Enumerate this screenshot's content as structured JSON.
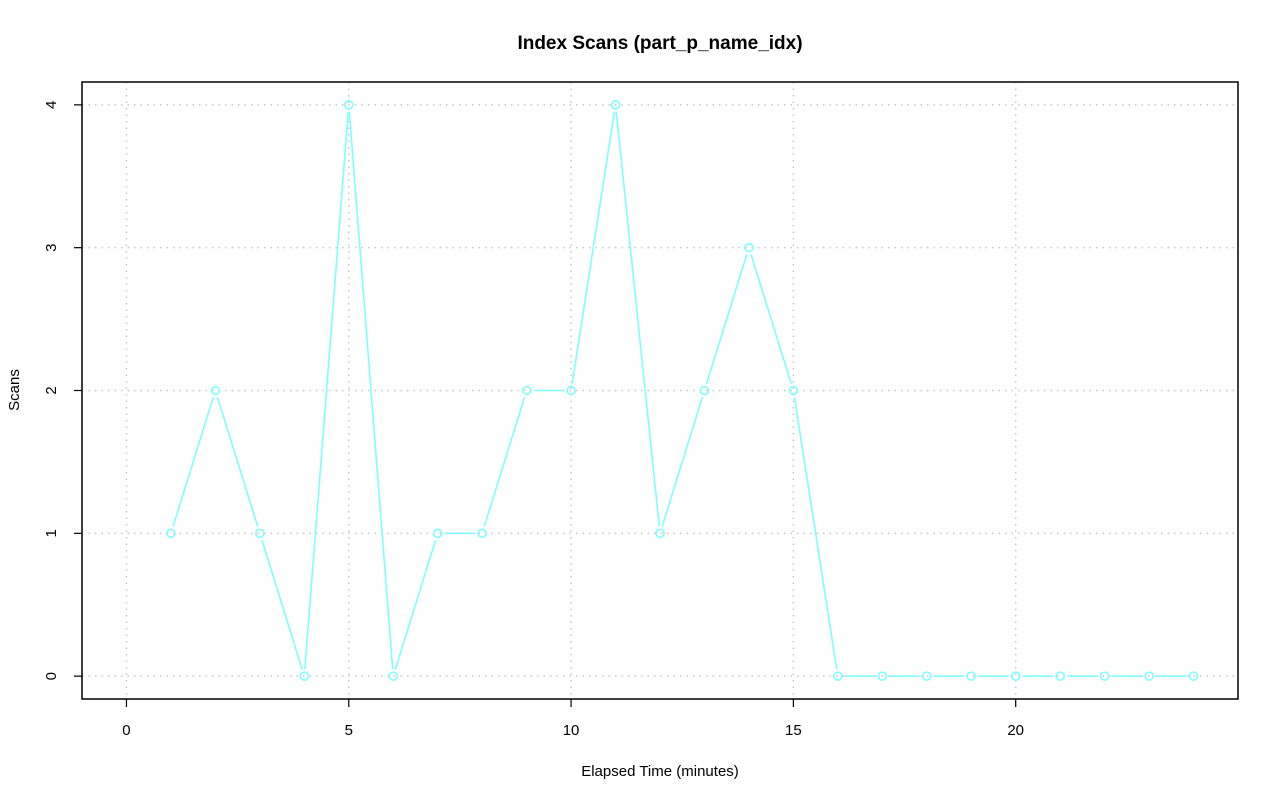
{
  "chart_data": {
    "type": "line",
    "title": "Index Scans (part_p_name_idx)",
    "xlabel": "Elapsed Time (minutes)",
    "ylabel": "Scans",
    "xlim": [
      -1,
      25
    ],
    "ylim": [
      -0.16,
      4.16
    ],
    "x_ticks": [
      0,
      5,
      10,
      15,
      20
    ],
    "y_ticks": [
      0,
      1,
      2,
      3,
      4
    ],
    "grid": true,
    "series": [
      {
        "color": "#7fffff",
        "marker": "circle",
        "x": [
          1,
          2,
          3,
          4,
          5,
          6,
          7,
          8,
          9,
          10,
          11,
          12,
          13,
          14,
          15,
          16,
          17,
          18,
          19,
          20,
          21,
          22,
          23,
          24
        ],
        "values": [
          1,
          2,
          1,
          0,
          4,
          0,
          1,
          1,
          2,
          2,
          4,
          1,
          2,
          3,
          2,
          0,
          0,
          0,
          0,
          0,
          0,
          0,
          0,
          0
        ]
      }
    ]
  }
}
